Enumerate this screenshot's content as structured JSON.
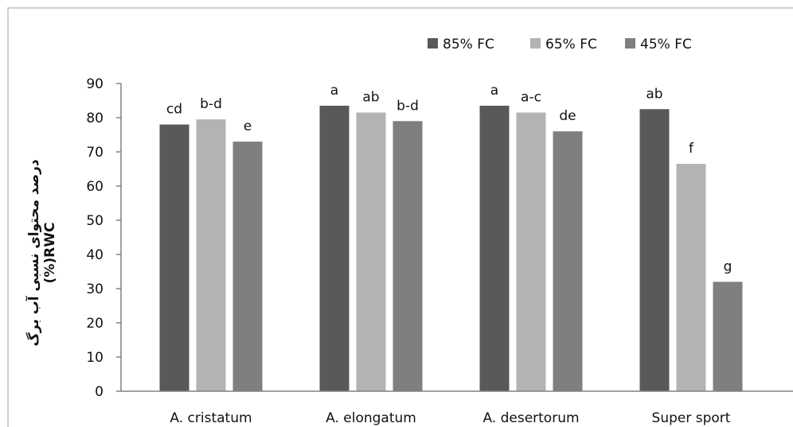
{
  "chart_data": {
    "type": "bar",
    "categories": [
      "A. cristatum",
      "A. elongatum",
      "A. desertorum",
      "Super sport"
    ],
    "series": [
      {
        "name": "85% FC",
        "color": "#595959",
        "values": [
          78,
          83.5,
          83.5,
          82.5
        ],
        "labels": [
          "cd",
          "a",
          "a",
          "ab"
        ]
      },
      {
        "name": "65% FC",
        "color": "#b3b3b3",
        "values": [
          79.5,
          81.5,
          81.5,
          66.5
        ],
        "labels": [
          "b-d",
          "ab",
          "a-c",
          "f"
        ]
      },
      {
        "name": "45% FC",
        "color": "#7f7f7f",
        "values": [
          73,
          79,
          76,
          32
        ],
        "labels": [
          "e",
          "b-d",
          "de",
          "g"
        ]
      }
    ],
    "ylabel_lines": [
      "درصد محتوای نسبی آب برگ",
      "(%)RWC"
    ],
    "xlabel": "",
    "ylim": [
      0,
      90
    ],
    "yticks": [
      0,
      10,
      20,
      30,
      40,
      50,
      60,
      70,
      80,
      90
    ],
    "grid": false,
    "legend_position": "top-right"
  }
}
